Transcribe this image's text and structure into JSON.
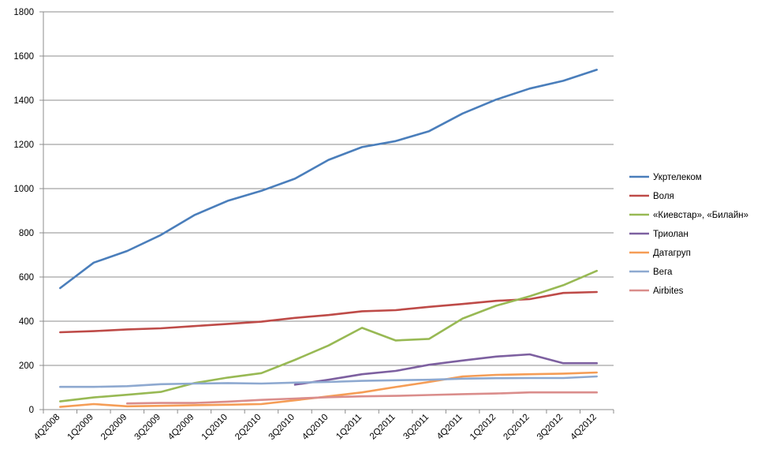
{
  "chart_data": {
    "type": "line",
    "title": "",
    "xlabel": "",
    "ylabel": "",
    "ylim": [
      0,
      1800
    ],
    "y_ticks": [
      "0",
      "200",
      "400",
      "600",
      "800",
      "1000",
      "1200",
      "1400",
      "1600",
      "1800"
    ],
    "grid": true,
    "legend_position": "right",
    "categories": [
      "4Q2008",
      "1Q2009",
      "2Q2009",
      "3Q2009",
      "4Q2009",
      "1Q2010",
      "2Q2010",
      "3Q2010",
      "4Q2010",
      "1Q2011",
      "2Q2011",
      "3Q2011",
      "4Q2011",
      "1Q2012",
      "2Q2012",
      "3Q2012",
      "4Q2012"
    ],
    "series": [
      {
        "name": "Укртелеком",
        "color": "#4A7EBB",
        "values": [
          550,
          665,
          718,
          790,
          880,
          945,
          990,
          1045,
          1130,
          1188,
          1215,
          1260,
          1340,
          1403,
          1453,
          1488,
          1538
        ]
      },
      {
        "name": "Воля",
        "color": "#BE4B48",
        "values": [
          350,
          355,
          363,
          368,
          378,
          388,
          398,
          415,
          428,
          445,
          450,
          465,
          478,
          492,
          500,
          528,
          532
        ]
      },
      {
        "name": "«Киевстар», «Билайн»",
        "color": "#98B954",
        "values": [
          37,
          55,
          67,
          80,
          120,
          145,
          165,
          225,
          290,
          370,
          313,
          320,
          412,
          470,
          513,
          563,
          628
        ]
      },
      {
        "name": "Триолан",
        "color": "#7D60A0",
        "values": [
          null,
          null,
          null,
          null,
          null,
          null,
          null,
          113,
          135,
          160,
          175,
          203,
          222,
          240,
          250,
          210,
          210
        ]
      },
      {
        "name": "Датагруп",
        "color": "#F59D56",
        "values": [
          12,
          25,
          15,
          17,
          20,
          22,
          25,
          42,
          60,
          78,
          102,
          125,
          150,
          157,
          160,
          163,
          168
        ]
      },
      {
        "name": "Вега",
        "color": "#8EA9D0",
        "values": [
          103,
          103,
          106,
          115,
          118,
          120,
          118,
          122,
          125,
          130,
          133,
          135,
          140,
          142,
          143,
          143,
          150
        ]
      },
      {
        "name": "Airbites",
        "color": "#DA8D8B",
        "values": [
          null,
          null,
          28,
          30,
          30,
          36,
          44,
          50,
          56,
          60,
          62,
          66,
          70,
          73,
          78,
          78,
          78
        ]
      }
    ]
  }
}
